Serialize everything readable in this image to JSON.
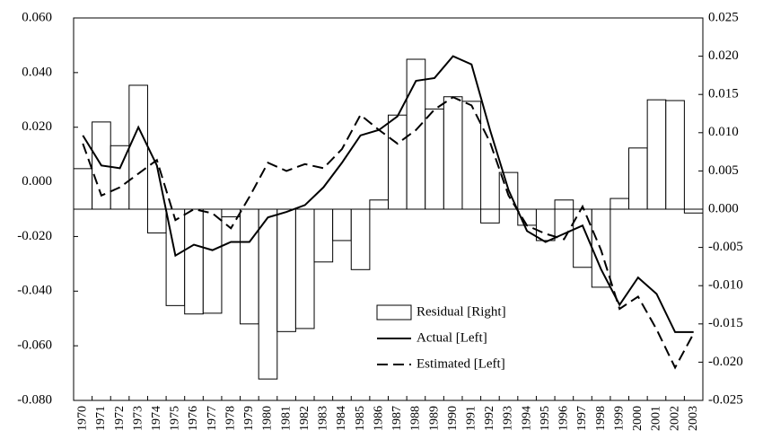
{
  "chart_data": {
    "type": "bar-line",
    "categories": [
      "1970",
      "1971",
      "1972",
      "1973",
      "1974",
      "1975",
      "1976",
      "1977",
      "1978",
      "1979",
      "1980",
      "1981",
      "1982",
      "1983",
      "1984",
      "1985",
      "1986",
      "1987",
      "1988",
      "1989",
      "1990",
      "1991",
      "1992",
      "1993",
      "1994",
      "1995",
      "1996",
      "1997",
      "1998",
      "1999",
      "2000",
      "2001",
      "2002",
      "2003"
    ],
    "series": [
      {
        "name": "Residual [Right]",
        "kind": "bar",
        "axis": "y2",
        "color": "#ffffff",
        "values": [
          0.0053,
          0.0114,
          0.0083,
          0.0162,
          -0.0031,
          -0.0126,
          -0.0137,
          -0.0136,
          -0.001,
          -0.015,
          -0.0222,
          -0.016,
          -0.0156,
          -0.0069,
          -0.0041,
          -0.0079,
          0.0012,
          0.0123,
          0.0196,
          0.0131,
          0.0147,
          0.0141,
          -0.0018,
          0.0048,
          -0.0021,
          -0.0041,
          0.0012,
          -0.0076,
          -0.0102,
          0.0014,
          0.008,
          0.0143,
          0.0142,
          -0.0005
        ]
      },
      {
        "name": "Actual [Left]",
        "kind": "line",
        "dash": "solid",
        "color": "#000000",
        "values": [
          0.017,
          0.006,
          0.005,
          0.02,
          0.006,
          -0.027,
          -0.023,
          -0.025,
          -0.022,
          -0.022,
          -0.013,
          -0.011,
          -0.0085,
          -0.002,
          0.007,
          0.017,
          0.019,
          0.024,
          0.037,
          0.038,
          0.046,
          0.043,
          0.019,
          -0.003,
          -0.018,
          -0.022,
          -0.019,
          -0.016,
          -0.032,
          -0.045,
          -0.035,
          -0.041,
          -0.055,
          -0.055
        ]
      },
      {
        "name": "Estimated [Left]",
        "kind": "line",
        "dash": "dashed",
        "color": "#000000",
        "values": [
          0.014,
          -0.005,
          -0.002,
          0.003,
          0.008,
          -0.014,
          -0.01,
          -0.0115,
          -0.017,
          -0.0055,
          0.007,
          0.004,
          0.0065,
          0.005,
          0.012,
          0.0245,
          0.019,
          0.014,
          0.019,
          0.0265,
          0.031,
          0.028,
          0.0145,
          -0.005,
          -0.016,
          -0.019,
          -0.021,
          -0.009,
          -0.025,
          -0.0465,
          -0.042,
          -0.054,
          -0.068,
          -0.0555
        ]
      }
    ],
    "ylim": [
      -0.08,
      0.06
    ],
    "yticks": [
      {
        "value": -0.08,
        "label": "-0.080"
      },
      {
        "value": -0.06,
        "label": "-0.060"
      },
      {
        "value": -0.04,
        "label": "-0.040"
      },
      {
        "value": -0.02,
        "label": "-0.020"
      },
      {
        "value": 0,
        "label": "0.000"
      },
      {
        "value": 0.02,
        "label": "0.020"
      },
      {
        "value": 0.04,
        "label": "0.040"
      },
      {
        "value": 0.06,
        "label": "0.060"
      }
    ],
    "y2lim": [
      -0.025,
      0.025
    ],
    "y2ticks": [
      {
        "value": -0.025,
        "label": "-0.025"
      },
      {
        "value": -0.02,
        "label": "-0.020"
      },
      {
        "value": -0.015,
        "label": "-0.015"
      },
      {
        "value": -0.01,
        "label": "-0.010"
      },
      {
        "value": -0.005,
        "label": "-0.005"
      },
      {
        "value": 0,
        "label": "0.000"
      },
      {
        "value": 0.005,
        "label": "0.005"
      },
      {
        "value": 0.01,
        "label": "0.010"
      },
      {
        "value": 0.015,
        "label": "0.015"
      },
      {
        "value": 0.02,
        "label": "0.020"
      },
      {
        "value": 0.025,
        "label": "0.025"
      }
    ],
    "grid": false
  }
}
